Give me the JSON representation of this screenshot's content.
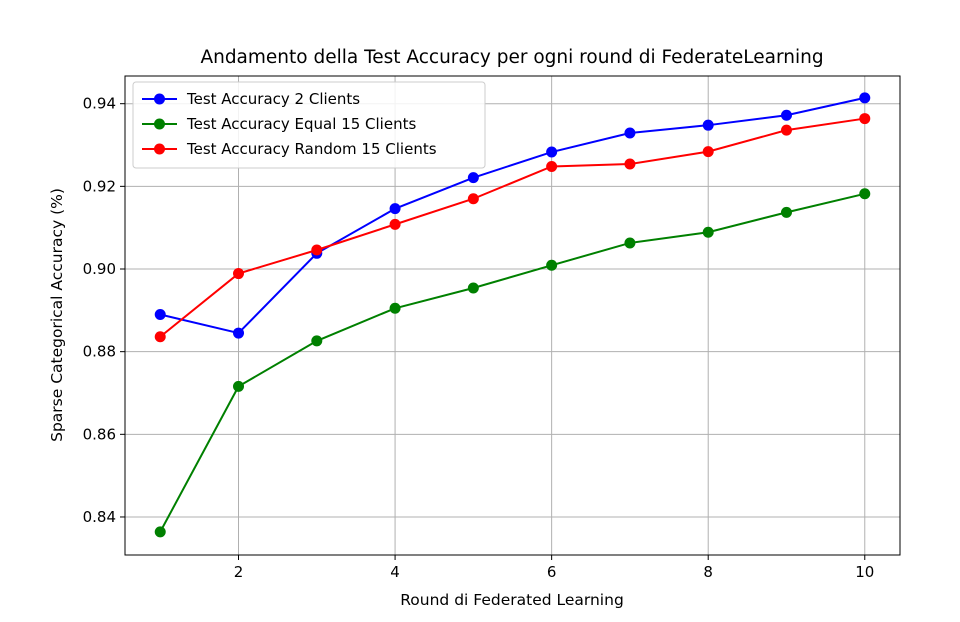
{
  "chart_data": {
    "type": "line",
    "title": "Andamento della Test Accuracy per ogni round di FederateLearning",
    "xlabel": "Round di Federated Learning",
    "ylabel": "Sparse Categorical Accuracy (%)",
    "xlim": [
      0.55,
      10.45
    ],
    "ylim": [
      0.8308,
      0.9467
    ],
    "xticks": [
      2,
      4,
      6,
      8,
      10
    ],
    "yticks": [
      0.84,
      0.86,
      0.88,
      0.9,
      0.92,
      0.94
    ],
    "xtick_labels": [
      "2",
      "4",
      "6",
      "8",
      "10"
    ],
    "ytick_labels": [
      "0.84",
      "0.86",
      "0.88",
      "0.90",
      "0.92",
      "0.94"
    ],
    "grid": true,
    "legend_position": "upper-left",
    "x": [
      1,
      2,
      3,
      4,
      5,
      6,
      7,
      8,
      9,
      10
    ],
    "series": [
      {
        "name": "Test Accuracy 2 Clients",
        "color": "#0000ff",
        "marker": "circle",
        "values": [
          0.889,
          0.8845,
          0.9038,
          0.9146,
          0.9221,
          0.9283,
          0.9329,
          0.9348,
          0.9372,
          0.9414
        ]
      },
      {
        "name": "Test Accuracy Equal 15 Clients",
        "color": "#008000",
        "marker": "circle",
        "values": [
          0.8364,
          0.8716,
          0.8826,
          0.8905,
          0.8954,
          0.9009,
          0.9063,
          0.9089,
          0.9137,
          0.9182
        ]
      },
      {
        "name": "Test Accuracy Random 15 Clients",
        "color": "#ff0000",
        "marker": "circle",
        "values": [
          0.8836,
          0.8989,
          0.9046,
          0.9108,
          0.917,
          0.9248,
          0.9254,
          0.9284,
          0.9336,
          0.9364
        ]
      }
    ]
  }
}
